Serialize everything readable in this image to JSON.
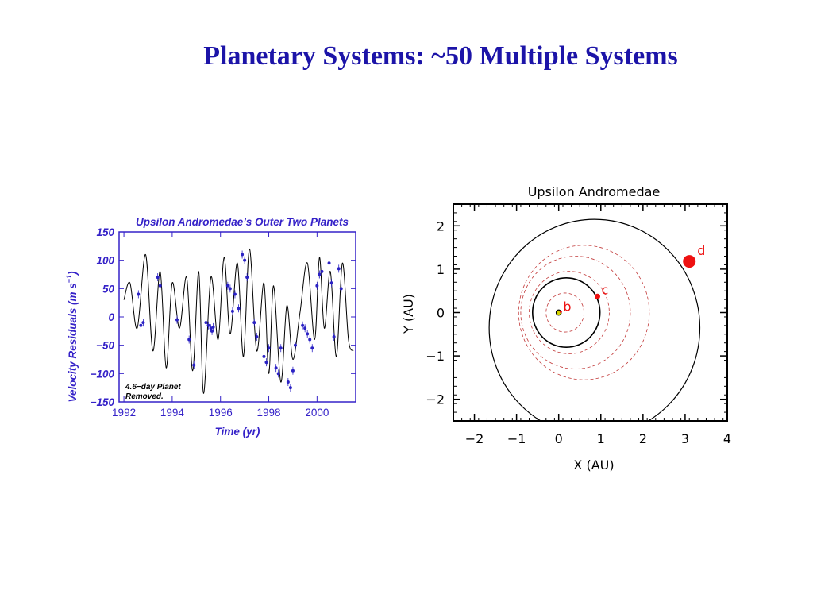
{
  "slide": {
    "title": "Planetary Systems: ~50 Multiple Systems"
  },
  "colors": {
    "title": "#1c14a8",
    "left_plot_text": "#3522c8",
    "data_points": "#2b22c4",
    "curve": "#000000",
    "orbit_dashed": "#c23a3a",
    "planet": "#ee1111",
    "star": "#d4d400"
  },
  "chart_data": [
    {
      "type": "line",
      "title": "Upsilon Andromedae’s Outer Two Planets",
      "xlabel": "Time  (yr)",
      "ylabel": "Velocity Residuals  (m s",
      "ylabel_superscript": "−1",
      "ylabel_close": ")",
      "xlim": [
        1991.8,
        2001.6
      ],
      "ylim": [
        -150,
        150
      ],
      "xticks": [
        1992,
        1994,
        1996,
        1998,
        2000
      ],
      "xtick_labels": [
        "1992",
        "1994",
        "1996",
        "1998",
        "2000"
      ],
      "yticks": [
        150,
        100,
        50,
        0,
        -50,
        -100,
        -150
      ],
      "ytick_labels": [
        "150",
        "100",
        "50",
        "0",
        "−50",
        "−100",
        "−150"
      ],
      "annotation": [
        "4.6−day Planet",
        "Removed."
      ],
      "series": [
        {
          "kind": "model-curve",
          "x": [
            1992.0,
            1992.25,
            1992.55,
            1992.9,
            1993.2,
            1993.5,
            1993.75,
            1994.0,
            1994.3,
            1994.6,
            1994.85,
            1995.1,
            1995.3,
            1995.6,
            1995.9,
            1996.15,
            1996.4,
            1996.7,
            1996.95,
            1997.2,
            1997.5,
            1997.8,
            1998.0,
            1998.2,
            1998.5,
            1998.75,
            1999.0,
            1999.3,
            1999.6,
            1999.9,
            2000.1,
            2000.3,
            2000.55,
            2000.8,
            2001.05,
            2001.3,
            2001.5
          ],
          "y": [
            30,
            60,
            -20,
            110,
            -60,
            80,
            -90,
            60,
            -20,
            70,
            -95,
            80,
            -135,
            70,
            -40,
            105,
            -30,
            95,
            -70,
            120,
            -60,
            60,
            -100,
            55,
            -115,
            20,
            -75,
            10,
            95,
            -40,
            105,
            -20,
            80,
            -70,
            95,
            -40,
            -60
          ]
        },
        {
          "kind": "observations",
          "x": [
            1992.6,
            1992.7,
            1992.8,
            1993.4,
            1993.5,
            1994.2,
            1994.7,
            1994.9,
            1995.4,
            1995.5,
            1995.6,
            1995.65,
            1995.7,
            1996.3,
            1996.4,
            1996.5,
            1996.6,
            1996.75,
            1996.9,
            1997.0,
            1997.1,
            1997.4,
            1997.5,
            1997.8,
            1997.9,
            1998.0,
            1998.3,
            1998.4,
            1998.5,
            1998.8,
            1998.9,
            1999.0,
            1999.1,
            1999.4,
            1999.5,
            1999.6,
            1999.7,
            1999.8,
            2000.0,
            2000.1,
            2000.2,
            2000.5,
            2000.6,
            2000.7,
            2000.9,
            2001.0
          ],
          "y": [
            40,
            -15,
            -10,
            70,
            55,
            -5,
            -40,
            -85,
            -10,
            -15,
            -20,
            -25,
            -18,
            55,
            50,
            10,
            40,
            15,
            110,
            100,
            70,
            -10,
            -35,
            -70,
            -80,
            -55,
            -90,
            -100,
            -55,
            -115,
            -125,
            -95,
            -50,
            -15,
            -20,
            -30,
            -40,
            -55,
            55,
            75,
            80,
            95,
            60,
            -35,
            85,
            50
          ]
        }
      ]
    },
    {
      "type": "scatter",
      "title": "Upsilon Andromedae",
      "xlabel": "X  (AU)",
      "ylabel": "Y  (AU)",
      "xlim": [
        -2.5,
        4.0
      ],
      "ylim": [
        -2.5,
        2.5
      ],
      "xticks": [
        -2,
        -1,
        0,
        1,
        2,
        3,
        4
      ],
      "xtick_labels": [
        "−2",
        "−1",
        "0",
        "1",
        "2",
        "3",
        "4"
      ],
      "yticks": [
        2,
        1,
        0,
        -1,
        -2
      ],
      "ytick_labels": [
        "2",
        "1",
        "0",
        "−1",
        "−2"
      ],
      "star": {
        "x": 0,
        "y": 0
      },
      "orbits": [
        {
          "planet": "b",
          "cx": 0.0,
          "cy": 0.0,
          "r": 0.06,
          "style": "solid"
        },
        {
          "planet": "c",
          "cx": 0.18,
          "cy": 0.0,
          "r": 0.8,
          "style": "solid"
        },
        {
          "planet": "d",
          "cx": 0.85,
          "cy": -0.35,
          "r": 2.5,
          "style": "solid"
        },
        {
          "cx": 0.15,
          "cy": 0.0,
          "r": 0.45,
          "style": "dashed"
        },
        {
          "cx": 0.25,
          "cy": 0.0,
          "r": 0.95,
          "style": "dashed"
        },
        {
          "cx": 0.4,
          "cy": 0.0,
          "r": 1.3,
          "style": "dashed"
        },
        {
          "cx": 0.6,
          "cy": 0.0,
          "r": 1.55,
          "style": "dashed"
        }
      ],
      "planets": [
        {
          "label": "b",
          "x": 0.05,
          "y": 0.02,
          "size": "tiny"
        },
        {
          "label": "c",
          "x": 0.92,
          "y": 0.37,
          "size": "small"
        },
        {
          "label": "d",
          "x": 3.1,
          "y": 1.18,
          "size": "large"
        }
      ]
    }
  ]
}
